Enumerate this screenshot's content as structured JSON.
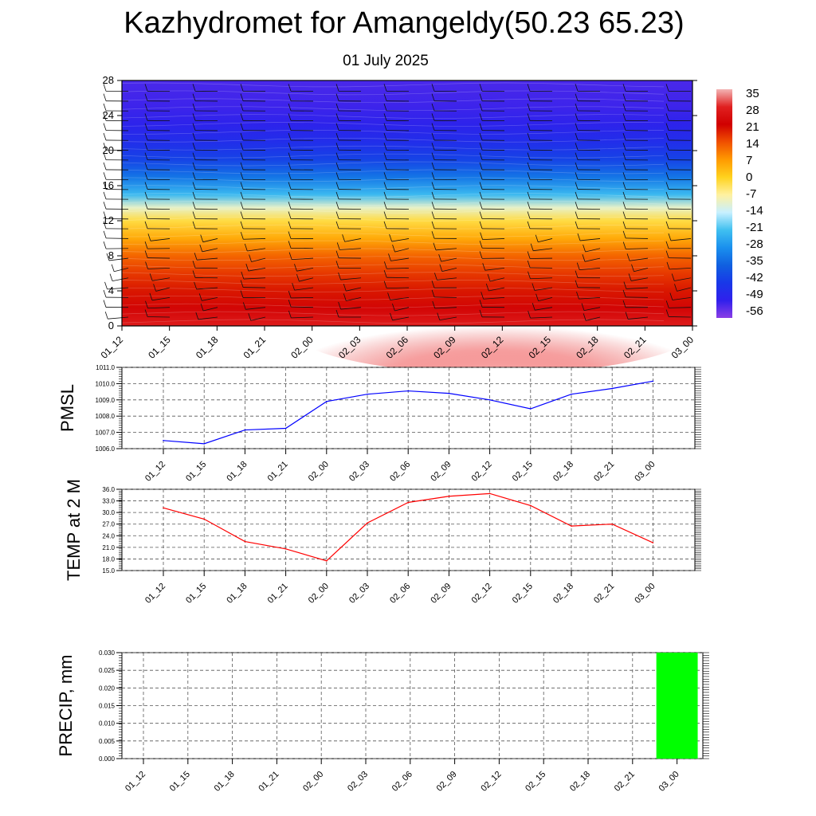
{
  "title": "Kazhydromet for Amangeldy(50.23 65.23)",
  "subtitle": "01 July 2025",
  "time_labels": [
    "01_12",
    "01_15",
    "01_18",
    "01_21",
    "02_00",
    "02_03",
    "02_06",
    "02_09",
    "02_12",
    "02_15",
    "02_18",
    "02_21",
    "03_00"
  ],
  "chart_data": [
    {
      "type": "heatmap",
      "title": "",
      "ylabel": "",
      "ylim": [
        0,
        28
      ],
      "yticks": [
        "0",
        "4",
        "8",
        "12",
        "16",
        "20",
        "24",
        "28"
      ],
      "colorbar": {
        "labels": [
          "35",
          "28",
          "21",
          "14",
          "7",
          "0",
          "-7",
          "-14",
          "-21",
          "-28",
          "-35",
          "-42",
          "-49",
          "-56"
        ],
        "stops": [
          {
            "value": 35,
            "color": "#f3b4b4"
          },
          {
            "value": 28,
            "color": "#e02020"
          },
          {
            "value": 21,
            "color": "#d00000"
          },
          {
            "value": 14,
            "color": "#f05000"
          },
          {
            "value": 7,
            "color": "#ff9a00"
          },
          {
            "value": 0,
            "color": "#ffd21e"
          },
          {
            "value": -7,
            "color": "#fff1a0"
          },
          {
            "value": -14,
            "color": "#c8f0ff"
          },
          {
            "value": -21,
            "color": "#40c0f0"
          },
          {
            "value": -28,
            "color": "#1a90ee"
          },
          {
            "value": -35,
            "color": "#1060e0"
          },
          {
            "value": -42,
            "color": "#1838e8"
          },
          {
            "value": -49,
            "color": "#3020ec"
          },
          {
            "value": -56,
            "color": "#8a3ee6"
          }
        ]
      },
      "temperature_profile": [
        {
          "height": 0,
          "value": 27
        },
        {
          "height": 2,
          "value": 22
        },
        {
          "height": 4,
          "value": 19
        },
        {
          "height": 6,
          "value": 16
        },
        {
          "height": 8,
          "value": 12
        },
        {
          "height": 10,
          "value": 5
        },
        {
          "height": 12,
          "value": -2
        },
        {
          "height": 13.5,
          "value": -10
        },
        {
          "height": 15,
          "value": -22
        },
        {
          "height": 17,
          "value": -32
        },
        {
          "height": 19,
          "value": -40
        },
        {
          "height": 21,
          "value": -45
        },
        {
          "height": 23,
          "value": -48
        },
        {
          "height": 25,
          "value": -50
        },
        {
          "height": 28,
          "value": -51
        }
      ]
    },
    {
      "type": "line",
      "ylabel": "PMSL",
      "ylim": [
        1006.0,
        1011.0
      ],
      "yticks": [
        "1006.0",
        "1007.0",
        "1008.0",
        "1009.0",
        "1010.0",
        "1011.0"
      ],
      "color": "#0000ff",
      "series": [
        {
          "values": [
            1006.5,
            1006.3,
            1007.15,
            1007.25,
            1008.9,
            1009.35,
            1009.55,
            1009.4,
            1009.0,
            1008.45,
            1009.35,
            1009.7,
            1010.15
          ]
        }
      ]
    },
    {
      "type": "line",
      "ylabel": "TEMP at 2 M",
      "ylim": [
        15.0,
        36.0
      ],
      "yticks": [
        "15.0",
        "18.0",
        "21.0",
        "24.0",
        "27.0",
        "30.0",
        "33.0",
        "36.0"
      ],
      "color": "#ff0000",
      "series": [
        {
          "values": [
            31.2,
            28.3,
            22.5,
            20.6,
            17.5,
            27.3,
            32.6,
            34.2,
            34.9,
            31.8,
            26.5,
            27.0,
            22.2
          ]
        }
      ]
    },
    {
      "type": "bar",
      "ylabel": "PRECIP, mm",
      "ylim": [
        0.0,
        0.03
      ],
      "yticks": [
        "0.000",
        "0.005",
        "0.010",
        "0.015",
        "0.020",
        "0.025",
        "0.030"
      ],
      "color": "#00ff00",
      "values": [
        0,
        0,
        0,
        0,
        0,
        0,
        0,
        0,
        0,
        0,
        0,
        0,
        0.03
      ]
    }
  ]
}
